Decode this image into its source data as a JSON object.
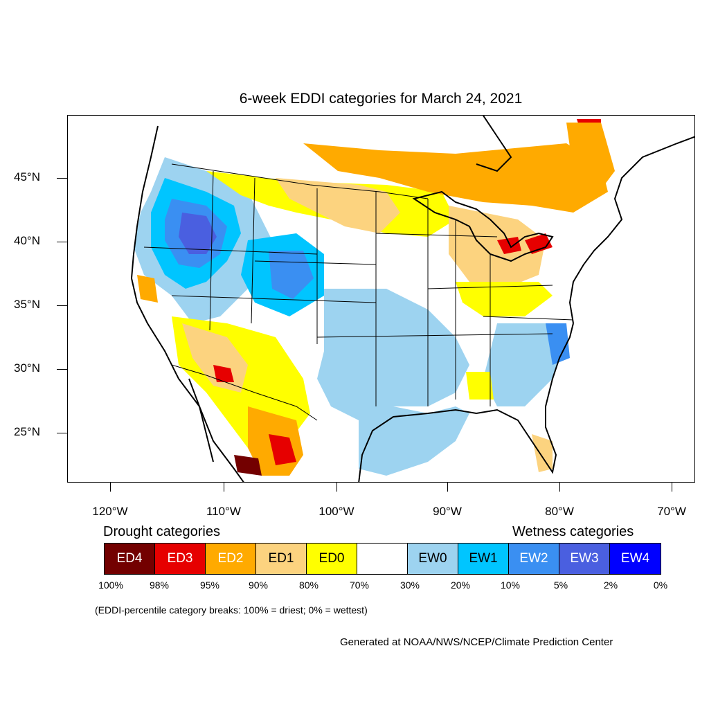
{
  "title": "6-week EDDI categories for March 24, 2021",
  "latitude_labels": [
    "45°N",
    "40°N",
    "35°N",
    "30°N",
    "25°N"
  ],
  "longitude_labels": [
    "120°W",
    "110°W",
    "100°W",
    "90°W",
    "80°W",
    "70°W"
  ],
  "legend": {
    "drought_heading": "Drought categories",
    "wetness_heading": "Wetness categories",
    "categories": [
      {
        "label": "ED4",
        "color": "#730000"
      },
      {
        "label": "ED3",
        "color": "#e60000"
      },
      {
        "label": "ED2",
        "color": "#ffaa00"
      },
      {
        "label": "ED1",
        "color": "#fcd37f"
      },
      {
        "label": "ED0",
        "color": "#ffff00"
      },
      {
        "label": "",
        "color": "#ffffff"
      },
      {
        "label": "EW0",
        "color": "#9dd3f0"
      },
      {
        "label": "EW1",
        "color": "#00c5ff"
      },
      {
        "label": "EW2",
        "color": "#3a8ff2"
      },
      {
        "label": "EW3",
        "color": "#4a5fe0"
      },
      {
        "label": "EW4",
        "color": "#0000ff"
      }
    ],
    "percentiles": [
      "100%",
      "98%",
      "95%",
      "90%",
      "80%",
      "70%",
      "30%",
      "20%",
      "10%",
      "5%",
      "2%",
      "0%"
    ]
  },
  "note": "(EDDI-percentile category breaks: 100% = driest; 0% = wettest)",
  "credit": "Generated at NOAA/NWS/NCEP/Climate Prediction Center"
}
